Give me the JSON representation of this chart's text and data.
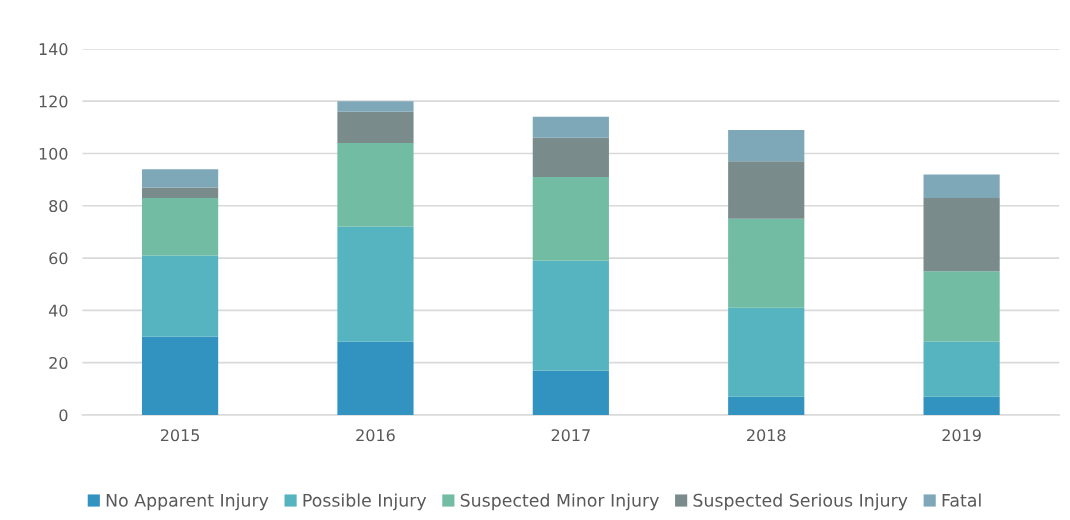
{
  "chart_data": {
    "type": "bar",
    "stacked": true,
    "categories": [
      "2015",
      "2016",
      "2017",
      "2018",
      "2019"
    ],
    "series": [
      {
        "name": "No Apparent Injury",
        "color": "#3393c0",
        "values": [
          30,
          28,
          17,
          7,
          7
        ]
      },
      {
        "name": "Possible Injury",
        "color": "#56b4c0",
        "values": [
          31,
          44,
          42,
          34,
          21
        ]
      },
      {
        "name": "Suspected Minor Injury",
        "color": "#72bca4",
        "values": [
          22,
          32,
          32,
          34,
          27
        ]
      },
      {
        "name": "Suspected Serious Injury",
        "color": "#7a8b8c",
        "values": [
          4,
          12,
          15,
          22,
          28
        ]
      },
      {
        "name": "Fatal",
        "color": "#7ea8b8",
        "values": [
          7,
          4,
          8,
          12,
          9
        ]
      }
    ],
    "ylim": [
      0,
      140
    ],
    "yticks": [
      0,
      20,
      40,
      60,
      80,
      100,
      120,
      140
    ],
    "grid": "y",
    "legend": "bottom"
  }
}
